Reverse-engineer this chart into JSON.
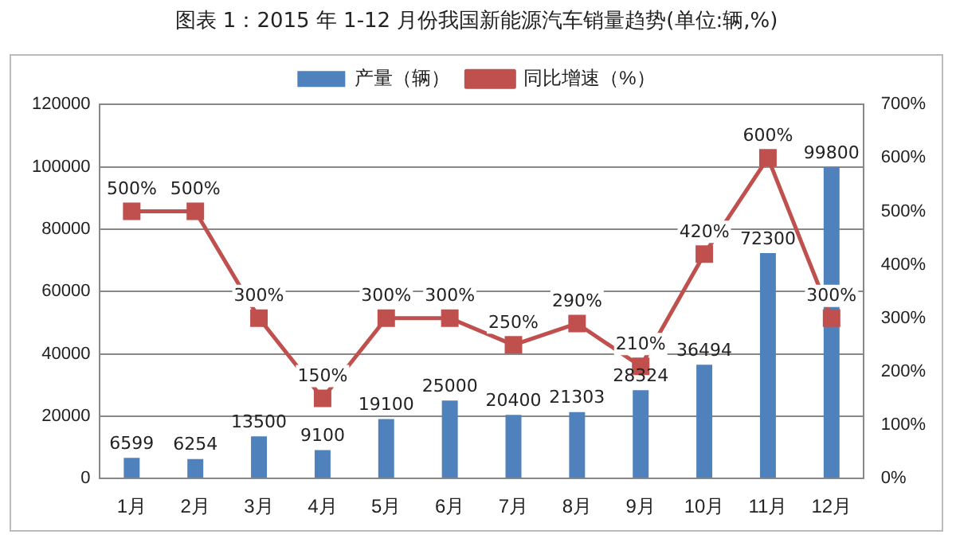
{
  "chart_data": {
    "type": "bar",
    "title": "图表 1：2015 年 1-12 月份我国新能源汽车销量趋势(单位:辆,%)",
    "categories": [
      "1月",
      "2月",
      "3月",
      "4月",
      "5月",
      "6月",
      "7月",
      "8月",
      "9月",
      "10月",
      "11月",
      "12月"
    ],
    "series": [
      {
        "name": "产量（辆）",
        "color": "#4f81bd",
        "values": [
          6599,
          6254,
          13500,
          9100,
          19100,
          25000,
          20400,
          21303,
          28324,
          36494,
          72300,
          99800
        ],
        "value_labels": [
          "6599",
          "6254",
          "13500",
          "9100",
          "19100",
          "25000",
          "20400",
          "21303",
          "28324",
          "36494",
          "72300",
          "99800"
        ]
      },
      {
        "name": "同比增速（%）",
        "type": "line",
        "axis": "y2",
        "color": "#c0504d",
        "marker": "square",
        "values": [
          500,
          500,
          300,
          150,
          300,
          300,
          250,
          290,
          210,
          420,
          600,
          300
        ],
        "value_labels": [
          "500%",
          "500%",
          "300%",
          "150%",
          "300%",
          "300%",
          "250%",
          "290%",
          "210%",
          "420%",
          "600%",
          "300%"
        ]
      }
    ],
    "ylim": [
      0,
      120000
    ],
    "yticks": [
      0,
      20000,
      40000,
      60000,
      80000,
      100000,
      120000
    ],
    "y2lim": [
      0,
      700
    ],
    "y2ticks": [
      {
        "value": 0,
        "label": "0%"
      },
      {
        "value": 100,
        "label": "100%"
      },
      {
        "value": 200,
        "label": "200%"
      },
      {
        "value": 300,
        "label": "300%"
      },
      {
        "value": 400,
        "label": "400%"
      },
      {
        "value": 500,
        "label": "500%"
      },
      {
        "value": 600,
        "label": "600%"
      },
      {
        "value": 700,
        "label": "700%"
      }
    ],
    "grid": "y",
    "legend": "top"
  }
}
